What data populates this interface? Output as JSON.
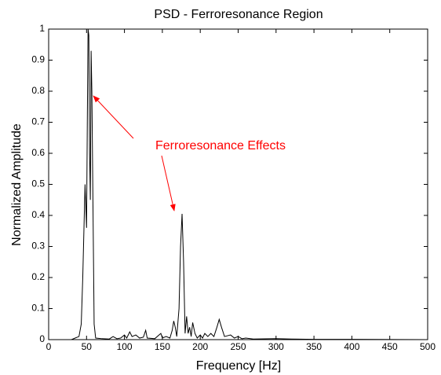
{
  "chart_data": {
    "type": "line",
    "title": "PSD - Ferroresonance Region",
    "x_label": "Frequency [Hz]",
    "y_label": "Normalized Amplitude",
    "annotation": "Ferroresonance Effects",
    "annotation_color": "#ff0000",
    "xlim": [
      0,
      500
    ],
    "ylim": [
      0,
      1
    ],
    "xticks": [
      0,
      50,
      100,
      150,
      200,
      250,
      300,
      350,
      400,
      450,
      500
    ],
    "yticks": [
      0,
      0.1,
      0.2,
      0.3,
      0.4,
      0.5,
      0.6,
      0.7,
      0.8,
      0.9,
      1
    ],
    "grid": false,
    "series": [
      {
        "color": "#000000",
        "x": [
          0,
          30,
          35,
          40,
          43,
          45,
          48,
          50,
          51,
          52,
          53,
          54,
          55,
          56,
          57,
          59,
          60,
          62,
          70,
          80,
          85,
          90,
          95,
          100,
          103,
          107,
          110,
          115,
          120,
          125,
          128,
          130,
          140,
          148,
          150,
          155,
          160,
          163,
          165,
          167,
          169,
          172,
          174,
          176,
          178,
          180,
          182,
          184,
          186,
          188,
          190,
          193,
          196,
          200,
          203,
          206,
          210,
          214,
          218,
          222,
          225,
          228,
          232,
          240,
          245,
          250,
          255,
          260,
          270,
          300,
          320,
          350,
          400,
          500
        ],
        "values": [
          0,
          0,
          0.005,
          0.01,
          0.05,
          0.2,
          0.5,
          0.36,
          0.7,
          1.0,
          0.98,
          0.6,
          0.45,
          0.93,
          0.8,
          0.3,
          0.05,
          0.005,
          0.003,
          0.002,
          0.01,
          0.003,
          0.005,
          0.015,
          0.005,
          0.025,
          0.01,
          0.015,
          0.005,
          0.008,
          0.03,
          0.005,
          0.003,
          0.02,
          0.005,
          0.01,
          0.005,
          0.03,
          0.06,
          0.04,
          0.01,
          0.1,
          0.3,
          0.405,
          0.25,
          0.02,
          0.075,
          0.02,
          0.04,
          0.01,
          0.055,
          0.02,
          0.005,
          0.015,
          0.005,
          0.02,
          0.01,
          0.02,
          0.01,
          0.04,
          0.065,
          0.04,
          0.01,
          0.015,
          0.005,
          0.01,
          0.003,
          0.005,
          0.002,
          0.003,
          0.002,
          0.001,
          0.001,
          0
        ]
      }
    ]
  }
}
